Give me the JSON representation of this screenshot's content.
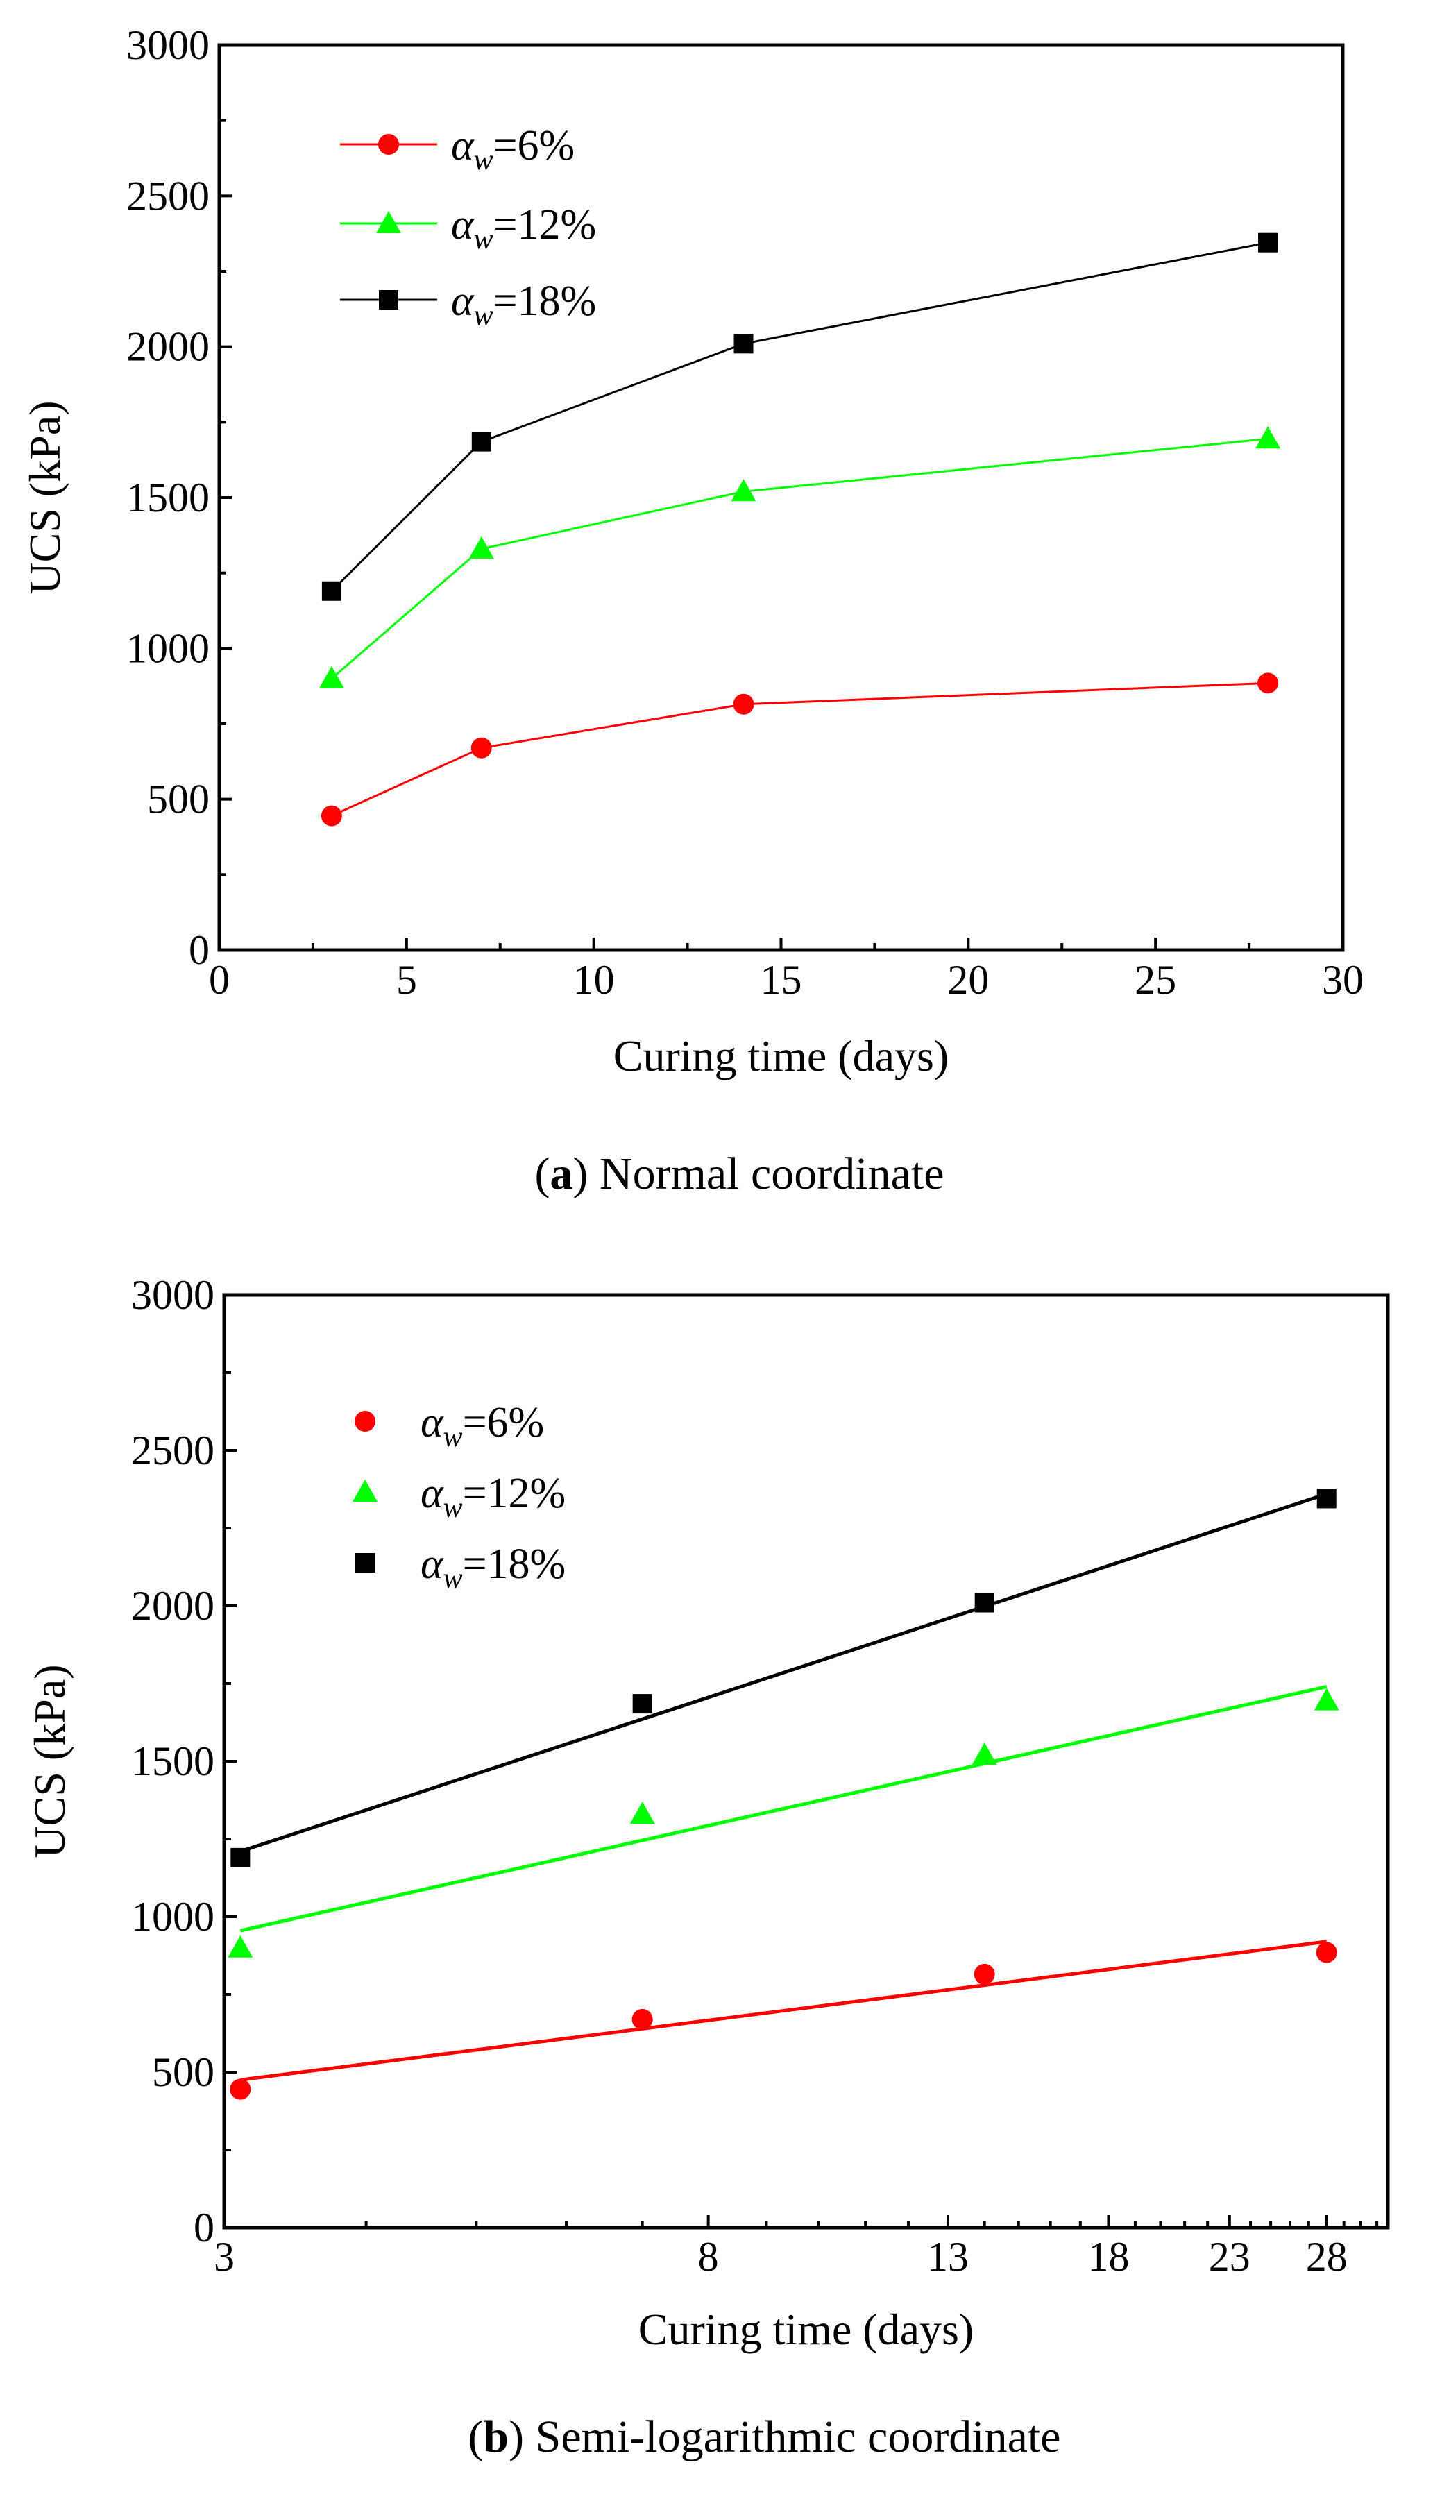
{
  "chart_data": [
    {
      "type": "line",
      "title": "",
      "caption_label": "a",
      "caption_text": " Normal coordinate",
      "xlabel": "Curing time (days)",
      "ylabel": "UCS (kPa)",
      "xscale": "linear",
      "xlim": [
        0,
        30
      ],
      "ylim": [
        0,
        3000
      ],
      "xticks": [
        0,
        5,
        10,
        15,
        20,
        25,
        30
      ],
      "yticks": [
        0,
        500,
        1000,
        1500,
        2000,
        2500,
        3000
      ],
      "legend_position": "top-left",
      "x": [
        3,
        7,
        14,
        28
      ],
      "series": [
        {
          "name": "αw=6%",
          "symbol": "α",
          "sub": "w",
          "suffix": "=6%",
          "color": "#ff0000",
          "marker": "circle",
          "values": [
            445,
            670,
            815,
            885
          ]
        },
        {
          "name": "αw=12%",
          "symbol": "α",
          "sub": "w",
          "suffix": "=12%",
          "color": "#00ff00",
          "marker": "triangle",
          "values": [
            900,
            1330,
            1520,
            1695
          ]
        },
        {
          "name": "αw=18%",
          "symbol": "α",
          "sub": "w",
          "suffix": "=18%",
          "color": "#000000",
          "marker": "square",
          "values": [
            1190,
            1685,
            2010,
            2345
          ]
        }
      ]
    },
    {
      "type": "scatter",
      "title": "",
      "caption_label": "b",
      "caption_text": " Semi-logarithmic coordinate",
      "xlabel": "Curing time (days)",
      "ylabel": "UCS (kPa)",
      "xscale": "log",
      "xlim": [
        3,
        31.7
      ],
      "ylim": [
        0,
        3000
      ],
      "xticks": [
        3,
        8,
        13,
        18,
        23,
        28
      ],
      "yticks": [
        0,
        500,
        1000,
        1500,
        2000,
        2500,
        3000
      ],
      "legend_position": "top-left",
      "x": [
        3.1,
        7,
        14,
        28
      ],
      "series": [
        {
          "name": "αw=6%",
          "symbol": "α",
          "sub": "w",
          "suffix": "=6%",
          "color": "#ff0000",
          "marker": "circle",
          "values": [
            445,
            670,
            815,
            885
          ],
          "fit": [
            [
              3.1,
              475
            ],
            [
              28,
              920
            ]
          ]
        },
        {
          "name": "αw=12%",
          "symbol": "α",
          "sub": "w",
          "suffix": "=12%",
          "color": "#00ff00",
          "marker": "triangle",
          "values": [
            900,
            1330,
            1520,
            1695
          ],
          "fit": [
            [
              3.1,
              955
            ],
            [
              28,
              1740
            ]
          ]
        },
        {
          "name": "αw=18%",
          "symbol": "α",
          "sub": "w",
          "suffix": "=18%",
          "color": "#000000",
          "marker": "square",
          "values": [
            1190,
            1685,
            2010,
            2345
          ],
          "fit": [
            [
              3.1,
              1210
            ],
            [
              28,
              2360
            ]
          ]
        }
      ]
    }
  ]
}
